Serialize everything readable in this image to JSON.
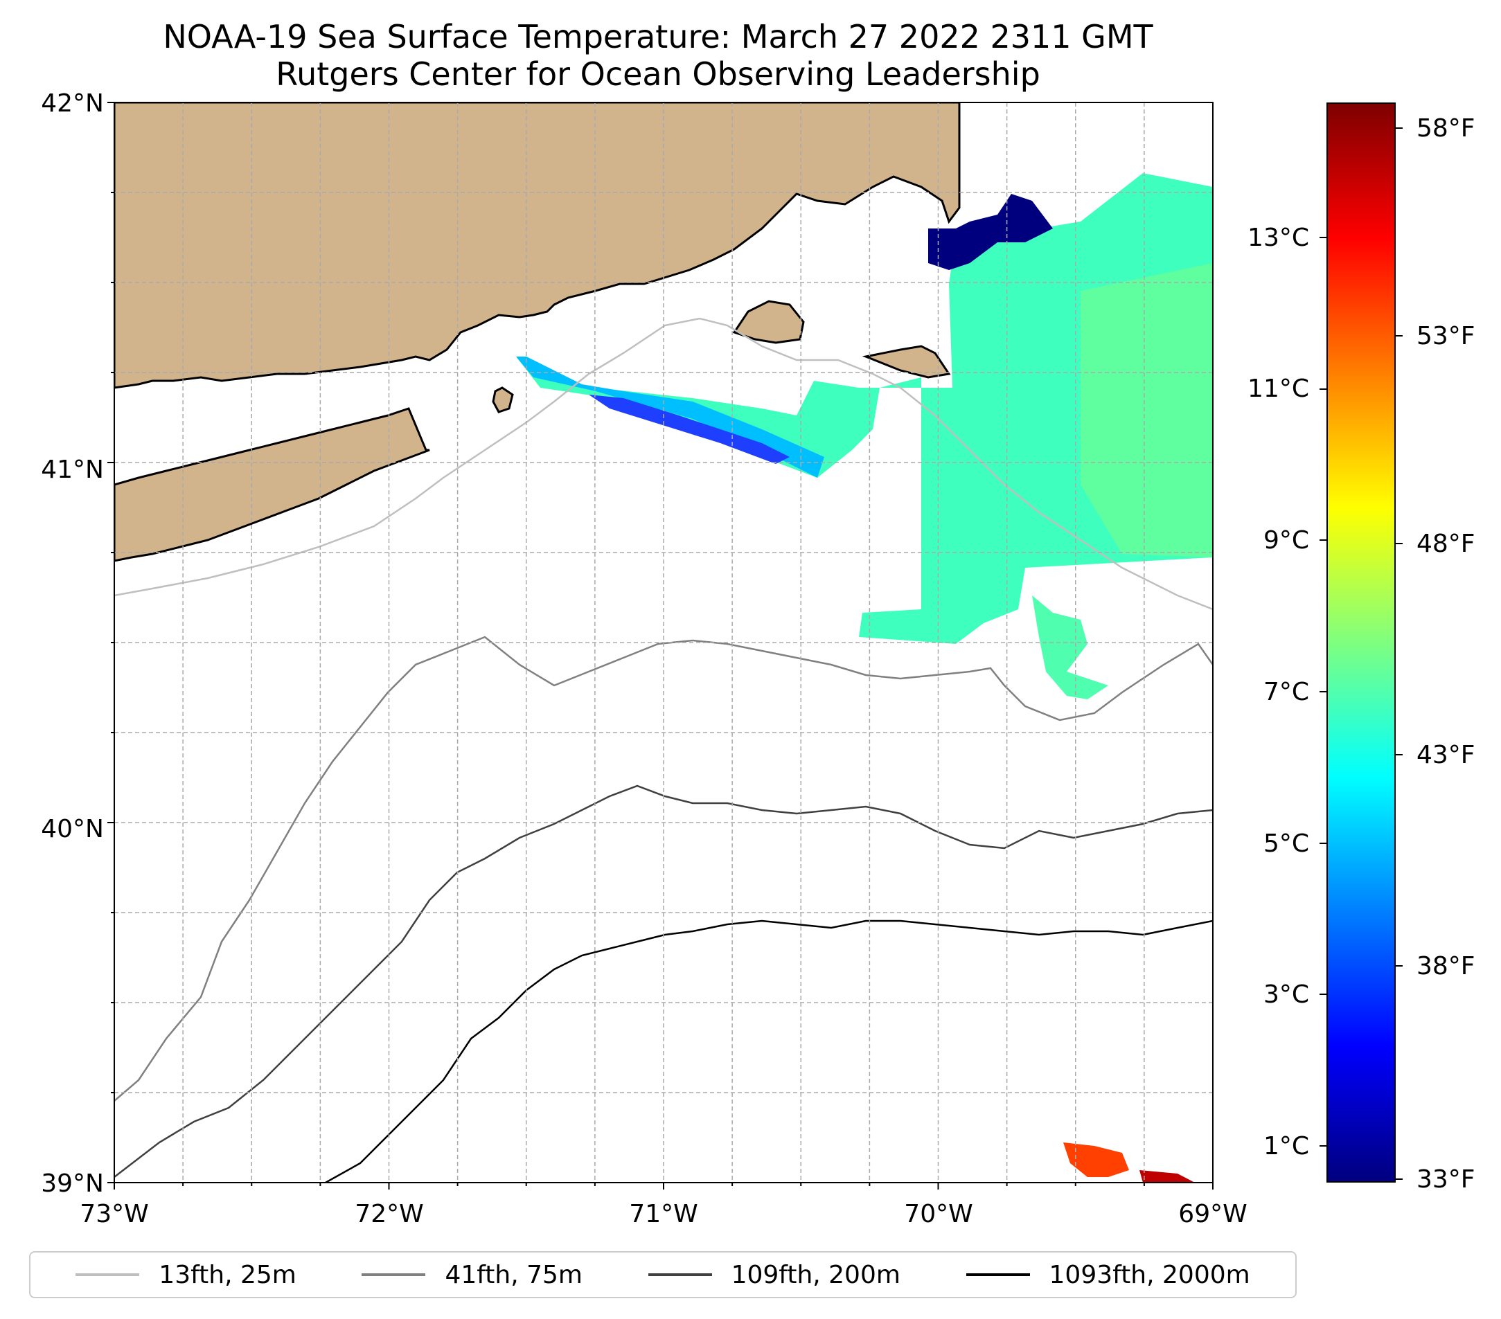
{
  "title": {
    "line1": "NOAA-19 Sea Surface Temperature: March 27 2022 2311 GMT",
    "line2": "Rutgers Center for Ocean Observing Leadership"
  },
  "map": {
    "lon_range": [
      -73,
      -69
    ],
    "lat_range": [
      39,
      42
    ],
    "x_ticks": [
      "73°W",
      "72°W",
      "71°W",
      "70°W",
      "69°W"
    ],
    "y_ticks": [
      "42°N",
      "41°N",
      "40°N",
      "39°N"
    ],
    "gridlines": true,
    "land_color": "#d2b48c",
    "ocean_color": "#ffffff"
  },
  "colorbar": {
    "celsius_ticks": [
      "13°C",
      "11°C",
      "9°C",
      "7°C",
      "5°C",
      "3°C",
      "1°C"
    ],
    "fahrenheit_ticks": [
      "58°F",
      "53°F",
      "48°F",
      "43°F",
      "38°F",
      "33°F"
    ],
    "colormap": [
      "#00007f",
      "#0000ff",
      "#007fff",
      "#00ffff",
      "#7fff7f",
      "#ffff00",
      "#ff7f00",
      "#ff0000",
      "#7f0000"
    ]
  },
  "legend": {
    "items": [
      {
        "label": "13fth, 25m",
        "color": "#bfbfbf"
      },
      {
        "label": "41fth, 75m",
        "color": "#808080"
      },
      {
        "label": "109fth, 200m",
        "color": "#404040"
      },
      {
        "label": "1093fth, 2000m",
        "color": "#000000"
      }
    ]
  }
}
